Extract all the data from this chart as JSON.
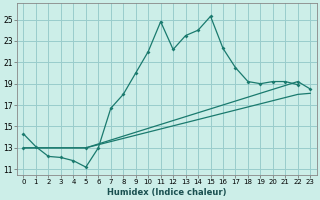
{
  "xlabel": "Humidex (Indice chaleur)",
  "xlim": [
    -0.5,
    23.5
  ],
  "ylim": [
    10.5,
    26.5
  ],
  "xticks": [
    0,
    1,
    2,
    3,
    4,
    5,
    6,
    7,
    8,
    9,
    10,
    11,
    12,
    13,
    14,
    15,
    16,
    17,
    18,
    19,
    20,
    21,
    22,
    23
  ],
  "yticks": [
    11,
    13,
    15,
    17,
    19,
    21,
    23,
    25
  ],
  "bg_color": "#cceee8",
  "grid_color": "#99cccc",
  "line_color": "#1a7a6e",
  "line1_x": [
    0,
    1,
    2,
    3,
    4,
    5,
    6,
    7,
    8,
    9,
    10,
    11,
    12,
    13,
    14,
    15,
    16,
    17,
    18,
    19,
    20,
    21,
    22
  ],
  "line1_y": [
    14.3,
    13.1,
    12.2,
    12.1,
    11.8,
    11.2,
    13.0,
    16.7,
    18.0,
    20.0,
    22.0,
    24.8,
    22.2,
    23.5,
    24.0,
    25.3,
    22.3,
    20.5,
    19.2,
    19.0,
    19.2,
    19.2,
    18.9
  ],
  "line2_x": [
    0,
    5,
    22,
    23
  ],
  "line2_y": [
    13.0,
    13.0,
    19.2,
    18.5
  ],
  "line3_x": [
    0,
    5,
    22,
    23
  ],
  "line3_y": [
    13.0,
    13.0,
    18.0,
    18.1
  ]
}
